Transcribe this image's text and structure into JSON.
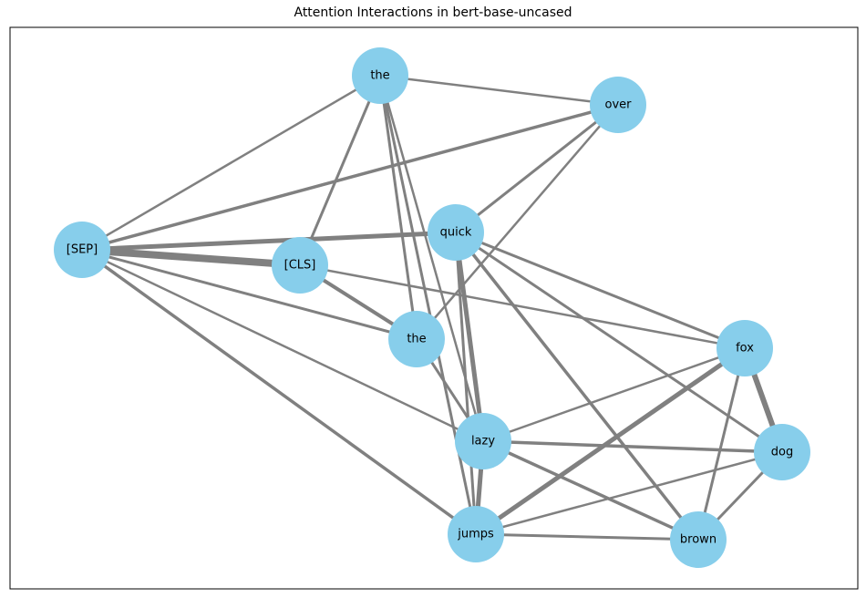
{
  "title": "Attention Interactions in bert-base-uncased",
  "colors": {
    "node": "#87ceeb",
    "edge": "#808080",
    "frame": "#000000"
  },
  "nodes": [
    {
      "id": "the_top",
      "label": "the"
    },
    {
      "id": "over",
      "label": "over"
    },
    {
      "id": "sep",
      "label": "[SEP]"
    },
    {
      "id": "quick",
      "label": "quick"
    },
    {
      "id": "cls",
      "label": "[CLS]"
    },
    {
      "id": "the_mid",
      "label": "the"
    },
    {
      "id": "fox",
      "label": "fox"
    },
    {
      "id": "lazy",
      "label": "lazy"
    },
    {
      "id": "dog",
      "label": "dog"
    },
    {
      "id": "jumps",
      "label": "jumps"
    },
    {
      "id": "brown",
      "label": "brown"
    }
  ],
  "edges": [
    {
      "source": "the_top",
      "target": "over",
      "weight": 2.5
    },
    {
      "source": "the_top",
      "target": "sep",
      "weight": 2.5
    },
    {
      "source": "the_top",
      "target": "cls",
      "weight": 3
    },
    {
      "source": "the_top",
      "target": "the_mid",
      "weight": 3
    },
    {
      "source": "the_top",
      "target": "lazy",
      "weight": 2.5
    },
    {
      "source": "the_top",
      "target": "jumps",
      "weight": 3
    },
    {
      "source": "over",
      "target": "sep",
      "weight": 3.5
    },
    {
      "source": "over",
      "target": "quick",
      "weight": 3
    },
    {
      "source": "over",
      "target": "the_mid",
      "weight": 2.5
    },
    {
      "source": "sep",
      "target": "quick",
      "weight": 5
    },
    {
      "source": "sep",
      "target": "cls",
      "weight": 8
    },
    {
      "source": "sep",
      "target": "the_mid",
      "weight": 3
    },
    {
      "source": "sep",
      "target": "lazy",
      "weight": 2.5
    },
    {
      "source": "sep",
      "target": "jumps",
      "weight": 3.5
    },
    {
      "source": "cls",
      "target": "the_mid",
      "weight": 4
    },
    {
      "source": "cls",
      "target": "fox",
      "weight": 2.5
    },
    {
      "source": "quick",
      "target": "lazy",
      "weight": 5
    },
    {
      "source": "quick",
      "target": "jumps",
      "weight": 3
    },
    {
      "source": "quick",
      "target": "fox",
      "weight": 3
    },
    {
      "source": "quick",
      "target": "dog",
      "weight": 3
    },
    {
      "source": "quick",
      "target": "brown",
      "weight": 3.5
    },
    {
      "source": "the_mid",
      "target": "lazy",
      "weight": 3
    },
    {
      "source": "fox",
      "target": "lazy",
      "weight": 2.5
    },
    {
      "source": "fox",
      "target": "jumps",
      "weight": 5
    },
    {
      "source": "fox",
      "target": "dog",
      "weight": 6
    },
    {
      "source": "fox",
      "target": "brown",
      "weight": 3
    },
    {
      "source": "lazy",
      "target": "jumps",
      "weight": 5
    },
    {
      "source": "lazy",
      "target": "dog",
      "weight": 3.5
    },
    {
      "source": "lazy",
      "target": "brown",
      "weight": 3.5
    },
    {
      "source": "jumps",
      "target": "dog",
      "weight": 2.5
    },
    {
      "source": "jumps",
      "target": "brown",
      "weight": 3
    },
    {
      "source": "dog",
      "target": "brown",
      "weight": 3
    }
  ]
}
